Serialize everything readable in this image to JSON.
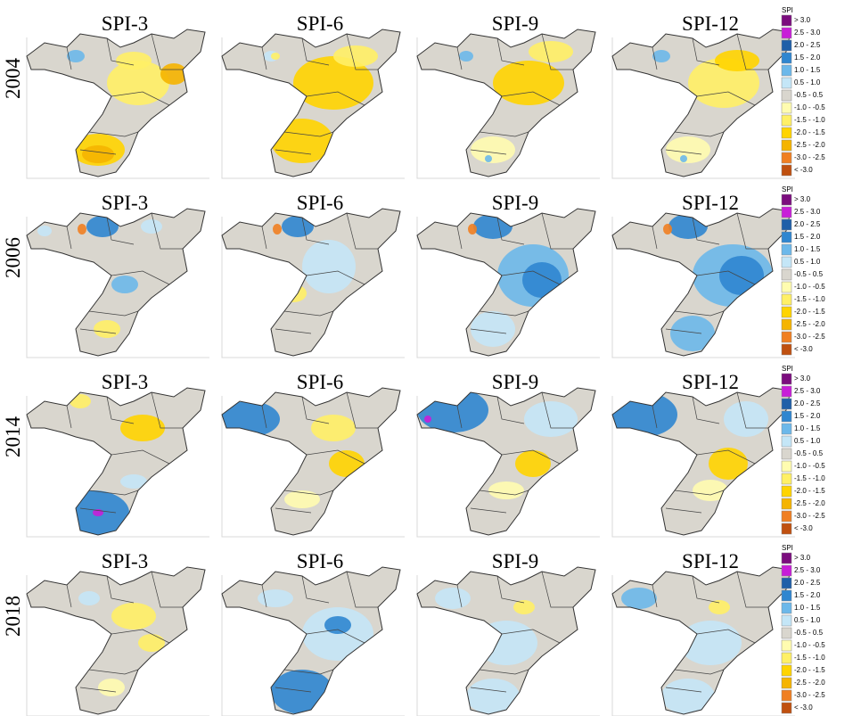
{
  "columns": [
    "SPI-3",
    "SPI-6",
    "SPI-9",
    "SPI-12"
  ],
  "rows": [
    "2004",
    "2006",
    "2014",
    "2018"
  ],
  "legend": {
    "title": "SPI",
    "items": [
      {
        "label": "> 3.0",
        "color": "#7b0d7e"
      },
      {
        "label": "2.5 - 3.0",
        "color": "#c81ed8"
      },
      {
        "label": "2.0 - 2.5",
        "color": "#1f5fa8"
      },
      {
        "label": "1.5 - 2.0",
        "color": "#2f86d0"
      },
      {
        "label": "1.0 - 1.5",
        "color": "#6cb8ea"
      },
      {
        "label": "0.5 - 1.0",
        "color": "#c4e6f7"
      },
      {
        "label": "-0.5 - 0.5",
        "color": "#d9d6ce"
      },
      {
        "label": "-1.0 - -0.5",
        "color": "#fffcb0"
      },
      {
        "label": "-1.5 - -1.0",
        "color": "#fff066"
      },
      {
        "label": "-2.0 - -1.5",
        "color": "#ffd400"
      },
      {
        "label": "-2.5 - -2.0",
        "color": "#f5b400"
      },
      {
        "label": "-3.0 - -2.5",
        "color": "#f07f22"
      },
      {
        "label": "< -3.0",
        "color": "#c0500f"
      }
    ]
  }
}
